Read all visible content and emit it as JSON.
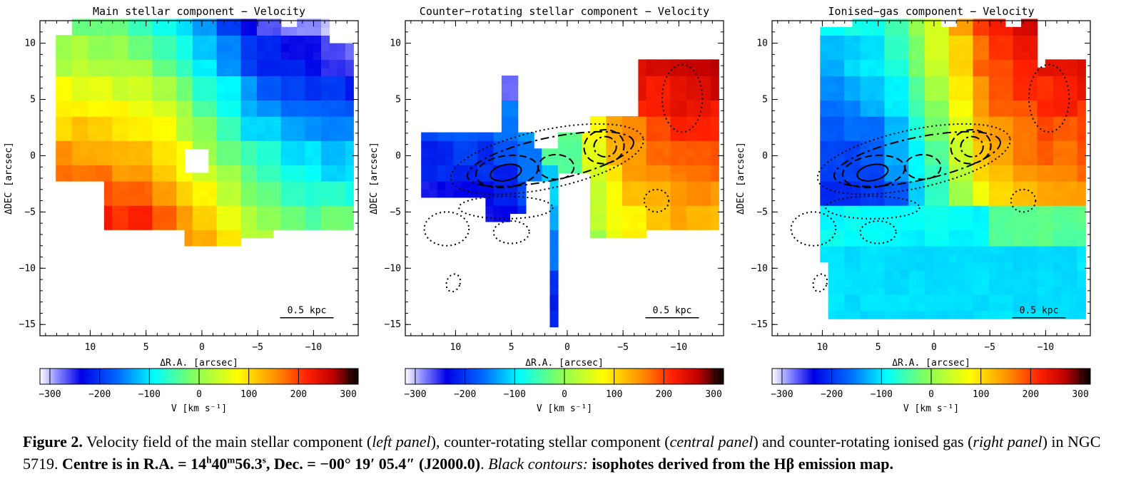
{
  "panels": [
    {
      "title": "Main stellar component − Velocity",
      "xlabel": "ΔR.A. [arcsec]",
      "ylabel": "ΔDEC [arcsec]",
      "scale_bar": "0.5 kpc",
      "cbar_label": "V [km s⁻¹]"
    },
    {
      "title": "Counter−rotating stellar component − Velocity",
      "xlabel": "ΔR.A. [arcsec]",
      "ylabel": "ΔDEC [arcsec]",
      "scale_bar": "0.5 kpc",
      "cbar_label": "V [km s⁻¹]"
    },
    {
      "title": "Ionised−gas component − Velocity",
      "xlabel": "ΔR.A. [arcsec]",
      "ylabel": "ΔDEC [arcsec]",
      "scale_bar": "0.5 kpc",
      "cbar_label": "V [km s⁻¹]"
    }
  ],
  "axes": {
    "x_ticks": [
      "10",
      "5",
      "0",
      "−5",
      "−10"
    ],
    "x_values": [
      10,
      5,
      0,
      -5,
      -10
    ],
    "xlim": [
      14.5,
      -14
    ],
    "y_ticks": [
      "10",
      "5",
      "0",
      "−5",
      "−10",
      "−15"
    ],
    "y_values": [
      10,
      5,
      0,
      -5,
      -10,
      -15
    ],
    "ylim": [
      -16,
      12
    ]
  },
  "colorbar": {
    "ticks": [
      "−300",
      "−200",
      "−100",
      "0",
      "100",
      "200",
      "300"
    ],
    "values": [
      -300,
      -200,
      -100,
      0,
      100,
      200,
      300
    ],
    "range": [
      -320,
      320
    ],
    "colors": [
      "#ffffff",
      "#0000e0",
      "#0080ff",
      "#00ffff",
      "#80ff40",
      "#ffff00",
      "#ff8000",
      "#ff0000",
      "#000000"
    ]
  },
  "caption": {
    "fig_label": "Figure 2.",
    "t1": " Velocity field of the main stellar component (",
    "i1": "left panel",
    "t2": "), counter-rotating stellar component (",
    "i2": "central panel",
    "t3": ") and counter-rotating ionised gas (",
    "i3": "right panel",
    "t4": ") in NGC 5719. ",
    "b1": "Centre is in R.A. = 14",
    "sup_h": "h",
    "b2": "40",
    "sup_m": "m",
    "b3": "56.3",
    "sup_s": "s",
    "b4": ", Dec. = −00° 19′ 05.4″ (J2000.0)",
    "t5": ". ",
    "i4": "Black contours:",
    "t6": " ",
    "b5": "isophotes derived from the Hβ emission map."
  },
  "chart_data": [
    {
      "type": "heatmap",
      "title": "Main stellar component − Velocity",
      "xlabel": "ΔR.A. [arcsec]",
      "ylabel": "ΔDEC [arcsec]",
      "xlim": [
        14.5,
        -14
      ],
      "ylim": [
        -16,
        12
      ],
      "colorbar": {
        "label": "V [km s⁻¹]",
        "range": [
          -300,
          300
        ]
      },
      "pattern": "approaching side east (positive R.A.) at about +100 to +170 km/s, receding side west at about −100 to −150 km/s"
    },
    {
      "type": "heatmap",
      "title": "Counter−rotating stellar component − Velocity",
      "xlabel": "ΔR.A. [arcsec]",
      "ylabel": "ΔDEC [arcsec]",
      "xlim": [
        14.5,
        -14
      ],
      "ylim": [
        -16,
        12
      ],
      "colorbar": {
        "label": "V [km s⁻¹]",
        "range": [
          -300,
          300
        ]
      },
      "pattern": "east side about −180 km/s, west side about +180 to +250 km/s"
    },
    {
      "type": "heatmap",
      "title": "Ionised−gas component − Velocity",
      "xlabel": "ΔR.A. [arcsec]",
      "ylabel": "ΔDEC [arcsec]",
      "xlim": [
        14.5,
        -14
      ],
      "ylim": [
        -16,
        12
      ],
      "colorbar": {
        "label": "V [km s⁻¹]",
        "range": [
          -300,
          300
        ]
      },
      "pattern": "east side about −150 to −230 km/s, west side about +150 to +200 km/s"
    }
  ]
}
